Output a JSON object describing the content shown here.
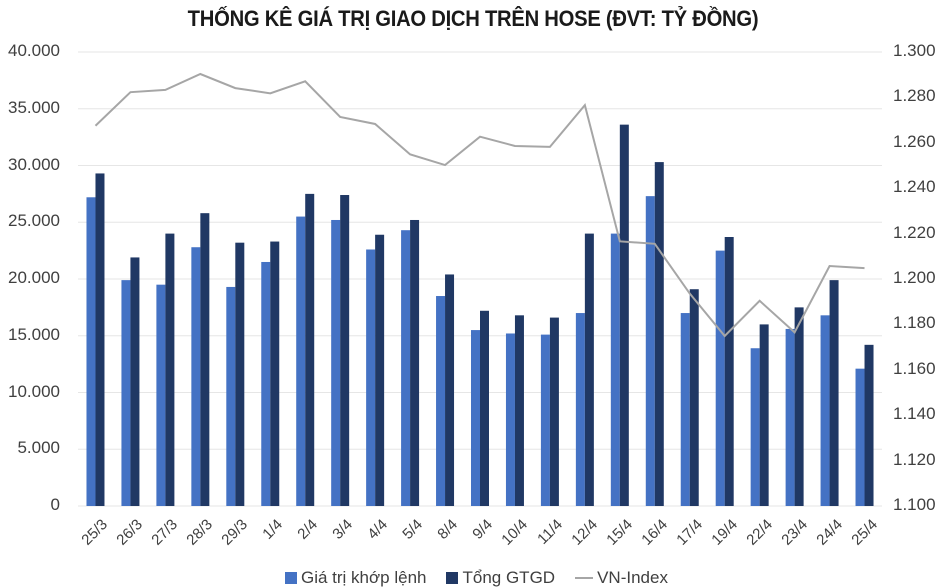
{
  "title": "THỐNG KÊ GIÁ TRỊ GIAO DỊCH TRÊN HOSE (ĐVT: TỶ ĐỒNG)",
  "legend": {
    "series1": "Giá trị khớp lệnh",
    "series2": "Tổng GTGD",
    "series3": "VN-Index"
  },
  "colors": {
    "series1": "#4472c4",
    "series2": "#203864",
    "series3": "#a6a6a6",
    "grid": "#e6e6e6"
  },
  "y_left_ticks": [
    "40.000",
    "35.000",
    "30.000",
    "25.000",
    "20.000",
    "15.000",
    "10.000",
    "5.000",
    "0"
  ],
  "y_right_ticks": [
    "1.300",
    "1.280",
    "1.260",
    "1.240",
    "1.220",
    "1.200",
    "1.180",
    "1.160",
    "1.140",
    "1.120",
    "1.100"
  ],
  "chart_data": {
    "type": "bar",
    "title": "THỐNG KÊ GIÁ TRỊ GIAO DỊCH TRÊN HOSE (ĐVT: TỶ ĐỒNG)",
    "xlabel": "",
    "ylabel": "",
    "ylim": [
      0,
      40000
    ],
    "y2lim": [
      1100,
      1300
    ],
    "grid": true,
    "legend_position": "bottom",
    "categories": [
      "25/3",
      "26/3",
      "27/3",
      "28/3",
      "29/3",
      "1/4",
      "2/4",
      "3/4",
      "4/4",
      "5/4",
      "8/4",
      "9/4",
      "10/4",
      "11/4",
      "12/4",
      "15/4",
      "16/4",
      "17/4",
      "19/4",
      "22/4",
      "23/4",
      "24/4",
      "25/4"
    ],
    "series": [
      {
        "name": "Giá trị khớp lệnh",
        "type": "bar",
        "axis": "left",
        "values": [
          27200,
          19900,
          19500,
          22800,
          19300,
          21500,
          25500,
          25200,
          22600,
          24300,
          18500,
          15500,
          15200,
          15100,
          17000,
          24000,
          27300,
          17000,
          22500,
          13900,
          15600,
          16800,
          12100
        ]
      },
      {
        "name": "Tổng GTGD",
        "type": "bar",
        "axis": "left",
        "values": [
          29300,
          21900,
          24000,
          25800,
          23200,
          23300,
          27500,
          27400,
          23900,
          25200,
          20400,
          17200,
          16800,
          16600,
          24000,
          33600,
          30300,
          19100,
          23700,
          16000,
          17500,
          19900,
          14200
        ]
      },
      {
        "name": "VN-Index",
        "type": "line",
        "axis": "right",
        "values": [
          1267.5,
          1282.3,
          1283.3,
          1290.3,
          1284.1,
          1281.8,
          1287.1,
          1271.4,
          1268.3,
          1254.9,
          1250.2,
          1262.7,
          1258.6,
          1258.2,
          1276.6,
          1216.6,
          1215.5,
          1193.6,
          1174.9,
          1190.4,
          1176.5,
          1205.7,
          1204.8
        ]
      }
    ]
  }
}
